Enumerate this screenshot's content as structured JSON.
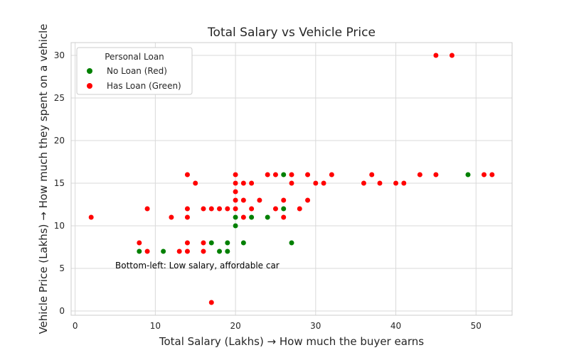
{
  "chart_data": {
    "type": "scatter",
    "title": "Total Salary vs Vehicle Price",
    "xlabel": "Total Salary (Lakhs) → How much the buyer earns",
    "ylabel": "Vehicle Price (Lakhs) → How much they spent on a vehicle",
    "xlim": [
      -0.5,
      54.5
    ],
    "ylim": [
      -0.5,
      31.5
    ],
    "xticks": [
      0,
      10,
      20,
      30,
      40,
      50
    ],
    "yticks": [
      0,
      5,
      10,
      15,
      20,
      25,
      30
    ],
    "grid": true,
    "legend": {
      "title": "Personal Loan",
      "placement": "top-left",
      "entries": [
        {
          "label": "No Loan (Red)",
          "color": "#008000"
        },
        {
          "label": "Has Loan (Green)",
          "color": "#ff0000"
        }
      ]
    },
    "annotation": {
      "text": "Bottom-left: Low salary, affordable car",
      "x": 5,
      "y": 5
    },
    "series": [
      {
        "name": "No Loan (Red)",
        "color": "#008000",
        "points": [
          [
            8,
            7
          ],
          [
            11,
            7
          ],
          [
            17,
            8
          ],
          [
            18,
            7
          ],
          [
            19,
            8
          ],
          [
            19,
            7
          ],
          [
            20,
            11
          ],
          [
            20,
            10
          ],
          [
            21,
            8
          ],
          [
            22,
            11
          ],
          [
            24,
            11
          ],
          [
            26,
            16
          ],
          [
            26,
            12
          ],
          [
            27,
            8
          ],
          [
            49,
            16
          ]
        ]
      },
      {
        "name": "Has Loan (Green)",
        "color": "#ff0000",
        "points": [
          [
            2,
            11
          ],
          [
            8,
            8
          ],
          [
            9,
            12
          ],
          [
            9,
            7
          ],
          [
            12,
            11
          ],
          [
            13,
            7
          ],
          [
            14,
            16
          ],
          [
            14,
            12
          ],
          [
            14,
            11
          ],
          [
            14,
            8
          ],
          [
            14,
            7
          ],
          [
            15,
            15
          ],
          [
            16,
            12
          ],
          [
            16,
            8
          ],
          [
            16,
            7
          ],
          [
            17,
            12
          ],
          [
            17,
            1
          ],
          [
            18,
            12
          ],
          [
            19,
            12
          ],
          [
            20,
            16
          ],
          [
            20,
            15
          ],
          [
            20,
            14
          ],
          [
            20,
            13
          ],
          [
            20,
            12
          ],
          [
            21,
            15
          ],
          [
            21,
            13
          ],
          [
            21,
            11
          ],
          [
            22,
            15
          ],
          [
            22,
            12
          ],
          [
            23,
            13
          ],
          [
            24,
            16
          ],
          [
            25,
            16
          ],
          [
            25,
            12
          ],
          [
            26,
            13
          ],
          [
            26,
            11
          ],
          [
            27,
            16
          ],
          [
            27,
            15
          ],
          [
            28,
            12
          ],
          [
            29,
            16
          ],
          [
            29,
            13
          ],
          [
            30,
            15
          ],
          [
            31,
            15
          ],
          [
            32,
            16
          ],
          [
            36,
            15
          ],
          [
            37,
            16
          ],
          [
            38,
            15
          ],
          [
            40,
            15
          ],
          [
            41,
            15
          ],
          [
            43,
            16
          ],
          [
            45,
            16
          ],
          [
            45,
            30
          ],
          [
            47,
            30
          ],
          [
            51,
            16
          ],
          [
            52,
            16
          ]
        ]
      }
    ]
  }
}
